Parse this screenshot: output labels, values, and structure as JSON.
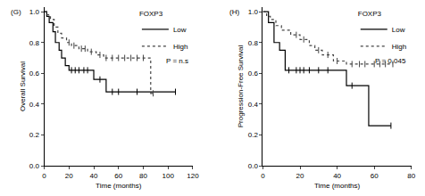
{
  "chart_data": [
    {
      "type": "line",
      "title": "(G)",
      "x_label": "Time (months)",
      "y_label": "Overall Survival",
      "xlim": [
        0,
        120
      ],
      "xticks": [
        0,
        20,
        40,
        60,
        80,
        100,
        120
      ],
      "ylim": [
        0,
        1.03
      ],
      "yticks": [
        {
          "value": 0,
          "label": "0.0"
        },
        0.2,
        0.4,
        0.6,
        0.8,
        {
          "value": 1,
          "label": "1.0"
        }
      ],
      "legend": "upper right",
      "legend_title": "FOXP3",
      "annotation": "P = n.s",
      "series": [
        {
          "name": "Low",
          "color": "#000000",
          "line_style": "solid",
          "x": [
            0,
            2,
            4,
            7,
            9,
            12,
            14,
            17,
            20,
            40,
            50,
            106
          ],
          "values": [
            1.0,
            0.97,
            0.93,
            0.87,
            0.8,
            0.75,
            0.7,
            0.65,
            0.62,
            0.56,
            0.48,
            0.48
          ],
          "censored": [
            22,
            25,
            28,
            32,
            35,
            45,
            55,
            60,
            75,
            106
          ]
        },
        {
          "name": "High",
          "color": "#444444",
          "line_style": "dot",
          "x": [
            0,
            2,
            5,
            8,
            11,
            14,
            18,
            22,
            28,
            35,
            42,
            48,
            86,
            88
          ],
          "values": [
            1.0,
            0.98,
            0.95,
            0.9,
            0.86,
            0.83,
            0.8,
            0.78,
            0.76,
            0.74,
            0.72,
            0.7,
            0.47,
            0.47
          ],
          "censored": [
            20,
            24,
            30,
            33,
            38,
            45,
            50,
            55,
            60,
            65,
            70,
            75,
            80,
            88
          ]
        }
      ]
    },
    {
      "type": "line",
      "title": "(H)",
      "x_label": "Time (months)",
      "y_label": "Progression-Free Survival",
      "xlim": [
        0,
        80
      ],
      "xticks": [
        0,
        20,
        40,
        60,
        80
      ],
      "ylim": [
        0,
        1.03
      ],
      "yticks": [
        {
          "value": 0,
          "label": "0.0"
        },
        0.2,
        0.4,
        0.6,
        0.8,
        {
          "value": 1,
          "label": "1.0"
        }
      ],
      "legend": "upper right",
      "legend_title": "FOXP3",
      "annotation": "P = 0.045",
      "series": [
        {
          "name": "Low",
          "color": "#000000",
          "line_style": "solid",
          "x": [
            0,
            3,
            6,
            9,
            12,
            45,
            57,
            69
          ],
          "values": [
            1.0,
            0.93,
            0.8,
            0.75,
            0.62,
            0.52,
            0.26,
            0.26
          ],
          "censored": [
            14,
            18,
            20,
            22,
            25,
            30,
            35,
            48,
            69
          ]
        },
        {
          "name": "High",
          "color": "#444444",
          "line_style": "dot",
          "x": [
            0,
            2,
            4,
            7,
            10,
            15,
            20,
            25,
            28,
            32,
            38,
            45,
            70
          ],
          "values": [
            1.0,
            0.97,
            0.95,
            0.91,
            0.88,
            0.85,
            0.82,
            0.78,
            0.75,
            0.72,
            0.68,
            0.66,
            0.66
          ],
          "censored": [
            18,
            22,
            30,
            35,
            40,
            48,
            52,
            55,
            60,
            63,
            66,
            70
          ]
        }
      ]
    }
  ]
}
